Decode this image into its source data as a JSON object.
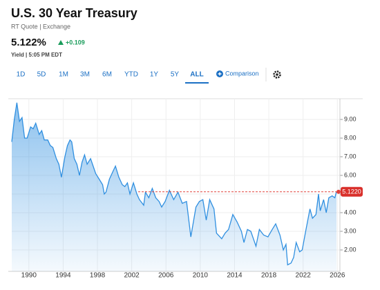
{
  "header": {
    "title": "U.S. 30 Year Treasury",
    "subtitle": "RT Quote | Exchange",
    "price": "5.122%",
    "change": "+0.109",
    "status": "Yield | 5:05 PM EDT"
  },
  "tabs": {
    "items": [
      "1D",
      "5D",
      "1M",
      "3M",
      "6M",
      "YTD",
      "1Y",
      "5Y",
      "ALL"
    ],
    "active": "ALL",
    "comparison": "Comparison"
  },
  "chart_data": {
    "type": "area",
    "color": "#2f8fe0",
    "grid": true,
    "x": [
      1988.0,
      1988.3,
      1988.6,
      1988.9,
      1989.2,
      1989.5,
      1989.8,
      1990.2,
      1990.5,
      1990.8,
      1991.2,
      1991.5,
      1991.8,
      1992.2,
      1992.5,
      1992.8,
      1993.2,
      1993.5,
      1993.8,
      1994.2,
      1994.5,
      1994.8,
      1995.0,
      1995.3,
      1995.6,
      1995.9,
      1996.2,
      1996.5,
      1996.8,
      1997.2,
      1997.5,
      1997.8,
      1998.2,
      1998.6,
      1998.8,
      1999.0,
      1999.4,
      1999.8,
      2000.1,
      2000.5,
      2000.9,
      2001.2,
      2001.5,
      2001.8,
      2002.2,
      2002.6,
      2002.9,
      2003.4,
      2003.6,
      2004.0,
      2004.4,
      2004.8,
      2005.2,
      2005.5,
      2005.9,
      2006.4,
      2006.9,
      2007.4,
      2007.9,
      2008.4,
      2008.9,
      2009.2,
      2009.5,
      2009.9,
      2010.3,
      2010.7,
      2011.1,
      2011.6,
      2011.9,
      2012.5,
      2012.9,
      2013.3,
      2013.8,
      2014.3,
      2014.8,
      2015.1,
      2015.5,
      2015.9,
      2016.5,
      2016.9,
      2017.4,
      2017.9,
      2018.4,
      2018.8,
      2019.3,
      2019.7,
      2020.0,
      2020.2,
      2020.6,
      2020.9,
      2021.2,
      2021.6,
      2021.9,
      2022.3,
      2022.8,
      2023.1,
      2023.5,
      2023.8,
      2024.0,
      2024.4,
      2024.7,
      2025.0,
      2025.4,
      2025.7,
      2025.9
    ],
    "values": [
      7.8,
      9.0,
      9.9,
      8.9,
      9.1,
      8.0,
      8.0,
      8.6,
      8.5,
      8.8,
      8.2,
      8.4,
      7.9,
      7.9,
      7.6,
      7.5,
      6.9,
      6.6,
      5.9,
      7.0,
      7.6,
      7.9,
      7.8,
      6.9,
      6.6,
      6.0,
      6.7,
      7.1,
      6.6,
      6.9,
      6.5,
      6.1,
      5.8,
      5.5,
      5.0,
      5.1,
      5.8,
      6.2,
      6.5,
      5.9,
      5.5,
      5.4,
      5.6,
      5.0,
      5.6,
      5.0,
      4.7,
      4.4,
      5.1,
      4.8,
      5.3,
      4.8,
      4.6,
      4.3,
      4.6,
      5.2,
      4.7,
      5.1,
      4.5,
      4.6,
      2.7,
      3.5,
      4.3,
      4.6,
      4.7,
      3.6,
      4.7,
      4.2,
      2.9,
      2.6,
      2.9,
      3.1,
      3.9,
      3.5,
      3.0,
      2.4,
      3.1,
      3.0,
      2.2,
      3.1,
      2.8,
      2.7,
      3.1,
      3.4,
      2.8,
      2.0,
      2.3,
      1.2,
      1.3,
      1.6,
      2.4,
      1.9,
      2.0,
      3.0,
      4.2,
      3.7,
      3.9,
      5.0,
      4.1,
      4.7,
      4.0,
      4.8,
      4.9,
      4.8,
      5.122
    ],
    "xlim": [
      1988,
      2026.3
    ],
    "xticks": [
      1990,
      1994,
      1998,
      2002,
      2006,
      2010,
      2014,
      2018,
      2022,
      2026
    ],
    "ylim": [
      1,
      10
    ],
    "yticks": [
      {
        "value": 2,
        "label": "2.00"
      },
      {
        "value": 3,
        "label": "3.00"
      },
      {
        "value": 4,
        "label": "4.00"
      },
      {
        "value": 5,
        "label": "5.00"
      },
      {
        "value": 6,
        "label": "6.00"
      },
      {
        "value": 7,
        "label": "7.00"
      },
      {
        "value": 8,
        "label": "8.00"
      },
      {
        "value": 9,
        "label": "9.00"
      }
    ],
    "last_value": {
      "value": 5.122,
      "label": "5.1220"
    }
  }
}
